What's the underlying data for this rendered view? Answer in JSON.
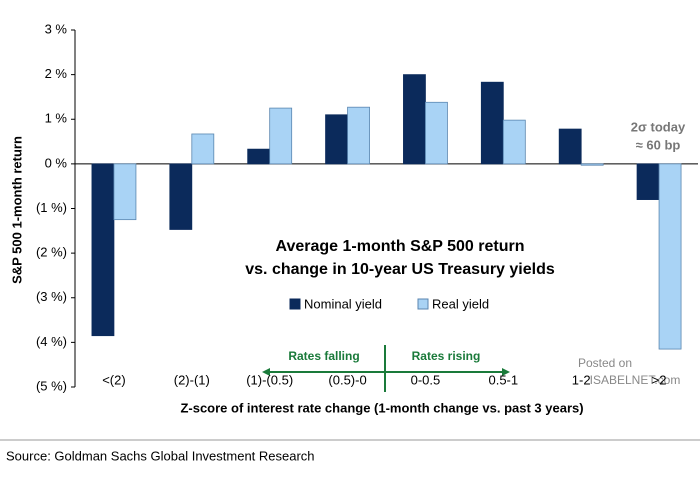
{
  "chart_data": {
    "type": "bar",
    "title": [
      "Average 1-month S&P 500 return",
      "vs. change in 10-year US Treasury yields"
    ],
    "y_label": "S&P 500 1-month return",
    "x_label": "Z-score of interest rate change (1-month change vs. past 3 years)",
    "categories": [
      "<(2)",
      "(2)-(1)",
      "(1)-(0.5)",
      "(0.5)-0",
      "0-0.5",
      "0.5-1",
      "1-2",
      ">2"
    ],
    "series": [
      {
        "name": "Nominal yield",
        "color": "#0b2a5b",
        "values": [
          -3.85,
          -1.47,
          0.33,
          1.1,
          2.0,
          1.83,
          0.78,
          -0.8
        ]
      },
      {
        "name": "Real yield",
        "color": "#a9d3f5",
        "values": [
          -1.25,
          0.67,
          1.25,
          1.27,
          1.38,
          0.98,
          -0.03,
          -4.15
        ]
      }
    ],
    "ylim": [
      -5,
      3
    ],
    "yticks": [
      {
        "value": 3,
        "label": "3 %"
      },
      {
        "value": 2,
        "label": "2 %"
      },
      {
        "value": 1,
        "label": "1 %"
      },
      {
        "value": 0,
        "label": "0 %"
      },
      {
        "value": -1,
        "label": "(1 %)"
      },
      {
        "value": -2,
        "label": "(2 %)"
      },
      {
        "value": -3,
        "label": "(3 %)"
      },
      {
        "value": -4,
        "label": "(4 %)"
      },
      {
        "value": -5,
        "label": "(5 %)"
      }
    ],
    "annotations": [
      "2σ today",
      "≈ 60 bp",
      "Rates falling",
      "Rates rising"
    ],
    "watermark": [
      "Posted on",
      "ISABELNET.com"
    ],
    "source": "Source: Goldman Sachs Global Investment Research"
  }
}
